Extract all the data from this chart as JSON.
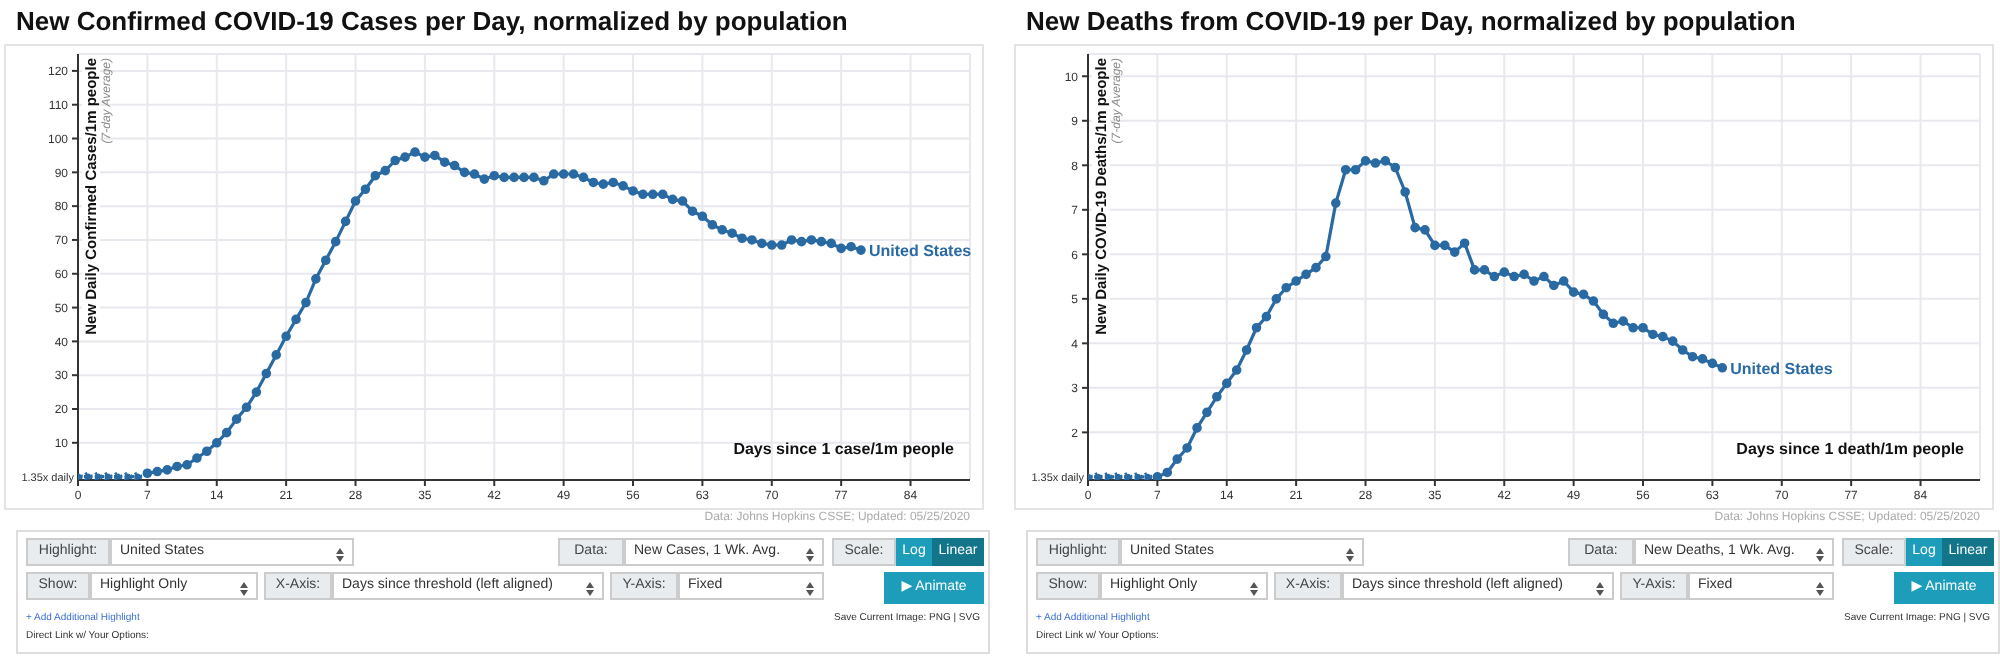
{
  "chart_data": [
    {
      "type": "line",
      "title": "New Confirmed COVID-19 Cases per Day, normalized by population",
      "xlabel": "Days since 1 case/1m people",
      "ylabel": "New Daily Confirmed Cases/1m people",
      "xlim": [
        0,
        90
      ],
      "xticks": [
        0,
        7,
        14,
        21,
        28,
        35,
        42,
        49,
        56,
        63,
        70,
        77,
        84
      ],
      "ylim": [
        -1,
        125
      ],
      "yticks": [
        10,
        20,
        30,
        40,
        50,
        60,
        70,
        80,
        90,
        100,
        110,
        120
      ],
      "grid": true,
      "marker": "circle",
      "series": [
        {
          "name": "United States",
          "color": "#2a6aa3",
          "line_style": "solid",
          "x": [
            7,
            8,
            9,
            10,
            11,
            12,
            13,
            14,
            15,
            16,
            17,
            18,
            19,
            20,
            21,
            22,
            23,
            24,
            25,
            26,
            27,
            28,
            29,
            30,
            31,
            32,
            33,
            34,
            35,
            36,
            37,
            38,
            39,
            40,
            41,
            42,
            43,
            44,
            45,
            46,
            47,
            48,
            49,
            50,
            51,
            52,
            53,
            54,
            55,
            56,
            57,
            58,
            59,
            60,
            61,
            62,
            63,
            64,
            65,
            66,
            67,
            68,
            69,
            70,
            71,
            72,
            73,
            74,
            75,
            76,
            77,
            78,
            79
          ],
          "values": [
            1,
            1.5,
            2,
            3,
            3.5,
            5.5,
            7.5,
            10,
            13,
            17,
            20.5,
            25,
            30.5,
            36,
            41.5,
            46.5,
            51.5,
            58.5,
            64,
            69.5,
            75.5,
            81.5,
            85,
            89,
            90.5,
            93.5,
            94.5,
            96,
            94.5,
            95,
            93,
            92,
            90,
            89.5,
            88,
            89,
            88.5,
            88.5,
            88.5,
            88.5,
            87.5,
            89.5,
            89.5,
            89.5,
            88.5,
            87,
            86.5,
            87,
            86,
            84.5,
            83.5,
            83.5,
            83.5,
            82,
            81.5,
            78.5,
            77,
            74.5,
            73,
            72,
            70.5,
            70,
            69,
            68.5,
            68.5,
            70,
            69.5,
            70,
            69.5,
            69,
            67.5,
            68,
            67
          ]
        },
        {
          "color": "#2a6aa3",
          "line_style": "dotted",
          "x": [
            0,
            1,
            2,
            3,
            4,
            5,
            6
          ],
          "values": [
            0,
            0,
            0,
            0,
            0,
            0,
            0
          ]
        }
      ],
      "annotations": [
        "(7-day Average)",
        {
          "text": "1.35x daily",
          "x": 0,
          "y": 0
        },
        "Data: Johns Hopkins CSSE; Updated: 05/25/2020",
        "Highlight:",
        "United States",
        "Data:",
        "New Cases, 1 Wk. Avg.",
        "Scale:",
        "Log",
        "Linear",
        "Show:",
        "Highlight Only",
        "X-Axis:",
        "Days since threshold (left aligned)",
        "Y-Axis:",
        "Fixed",
        "▶ Animate",
        "+ Add Additional Highlight",
        "Save Current Image: PNG | SVG",
        "Direct Link w/ Your Options:"
      ]
    },
    {
      "type": "line",
      "title": "New Deaths from COVID-19 per Day, normalized by population",
      "xlabel": "Days since 1 death/1m people",
      "ylabel": "New Daily COVID-19 Deaths/1m people",
      "xlim": [
        0,
        90
      ],
      "xticks": [
        0,
        7,
        14,
        21,
        28,
        35,
        42,
        49,
        56,
        63,
        70,
        77,
        84
      ],
      "ylim": [
        0.93,
        10.5
      ],
      "yticks": [
        2,
        3,
        4,
        5,
        6,
        7,
        8,
        9,
        10
      ],
      "grid": true,
      "marker": "circle",
      "series": [
        {
          "name": "United States",
          "color": "#2a6aa3",
          "line_style": "solid",
          "x": [
            7,
            8,
            9,
            10,
            11,
            12,
            13,
            14,
            15,
            16,
            17,
            18,
            19,
            20,
            21,
            22,
            23,
            24,
            25,
            26,
            27,
            28,
            29,
            30,
            31,
            32,
            33,
            34,
            35,
            36,
            37,
            38,
            39,
            40,
            41,
            42,
            43,
            44,
            45,
            46,
            47,
            48,
            49,
            50,
            51,
            52,
            53,
            54,
            55,
            56,
            57,
            58,
            59,
            60,
            61,
            62,
            63,
            64
          ],
          "values": [
            1,
            1.1,
            1.4,
            1.65,
            2.1,
            2.45,
            2.8,
            3.1,
            3.4,
            3.85,
            4.35,
            4.6,
            5,
            5.25,
            5.4,
            5.55,
            5.7,
            5.95,
            7.15,
            7.9,
            7.9,
            8.1,
            8.05,
            8.1,
            7.95,
            7.4,
            6.6,
            6.55,
            6.2,
            6.2,
            6.05,
            6.25,
            5.65,
            5.65,
            5.5,
            5.6,
            5.5,
            5.55,
            5.4,
            5.5,
            5.3,
            5.4,
            5.15,
            5.1,
            4.95,
            4.65,
            4.45,
            4.5,
            4.35,
            4.35,
            4.2,
            4.15,
            4.05,
            3.85,
            3.7,
            3.65,
            3.55,
            3.45
          ]
        },
        {
          "color": "#2a6aa3",
          "line_style": "dotted",
          "x": [
            0,
            1,
            2,
            3,
            4,
            5,
            6
          ],
          "values": [
            1,
            1,
            1,
            1,
            1,
            1,
            1
          ]
        }
      ],
      "annotations": [
        "(7-day Average)",
        {
          "text": "1.35x daily",
          "x": 0,
          "y": 1
        },
        "Data: Johns Hopkins CSSE; Updated: 05/25/2020",
        "Highlight:",
        "United States",
        "Data:",
        "New Deaths, 1 Wk. Avg.",
        "Scale:",
        "Log",
        "Linear",
        "Show:",
        "Highlight Only",
        "X-Axis:",
        "Days since threshold (left aligned)",
        "Y-Axis:",
        "Fixed",
        "▶ Animate",
        "+ Add Additional Highlight",
        "Save Current Image: PNG | SVG",
        "Direct Link w/ Your Options:"
      ]
    }
  ]
}
